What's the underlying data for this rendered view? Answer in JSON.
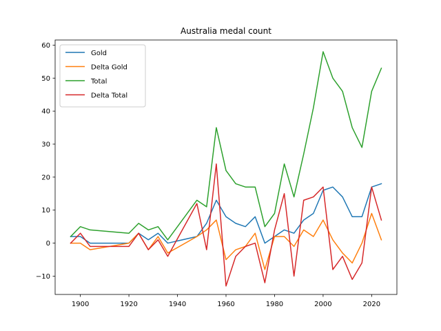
{
  "chart_data": {
    "type": "line",
    "title": "Australia medal count",
    "xlabel": "",
    "ylabel": "",
    "xlim": [
      1889.6,
      2030.4
    ],
    "ylim": [
      -15.55,
      61.55
    ],
    "xticks": [
      1900,
      1920,
      1940,
      1960,
      1980,
      2000,
      2020
    ],
    "yticks": [
      -10,
      0,
      10,
      20,
      30,
      40,
      50,
      60
    ],
    "legend_position": "upper-left",
    "grid": false,
    "x": [
      1896,
      1900,
      1904,
      1920,
      1924,
      1928,
      1932,
      1936,
      1948,
      1952,
      1956,
      1960,
      1964,
      1968,
      1972,
      1976,
      1980,
      1984,
      1988,
      1992,
      1996,
      2000,
      2004,
      2008,
      2012,
      2016,
      2020,
      2024
    ],
    "series": [
      {
        "name": "Gold",
        "color": "#1f77b4",
        "values": [
          2,
          2,
          0,
          0,
          3,
          1,
          3,
          0,
          2,
          6,
          13,
          8,
          6,
          5,
          8,
          0,
          2,
          4,
          3,
          7,
          9,
          16,
          17,
          14,
          8,
          8,
          17,
          18
        ]
      },
      {
        "name": "Delta Gold",
        "color": "#ff7f0e",
        "values": [
          0,
          0,
          -2,
          0,
          3,
          -2,
          2,
          -3,
          2,
          4,
          7,
          -5,
          -2,
          -1,
          3,
          -8,
          2,
          2,
          -1,
          4,
          2,
          7,
          1,
          -3,
          -6,
          0,
          9,
          1
        ]
      },
      {
        "name": "Total",
        "color": "#2ca02c",
        "values": [
          2,
          5,
          4,
          3,
          6,
          4,
          5,
          1,
          13,
          11,
          35,
          22,
          18,
          17,
          17,
          5,
          9,
          24,
          14,
          27,
          41,
          58,
          50,
          46,
          35,
          29,
          46,
          53
        ]
      },
      {
        "name": "Delta Total",
        "color": "#d62728",
        "values": [
          0,
          3,
          -1,
          -1,
          3,
          -2,
          1,
          -4,
          12,
          -2,
          24,
          -13,
          -4,
          -1,
          0,
          -12,
          4,
          15,
          -10,
          13,
          14,
          17,
          -8,
          -4,
          -11,
          -6,
          17,
          7
        ]
      }
    ]
  }
}
